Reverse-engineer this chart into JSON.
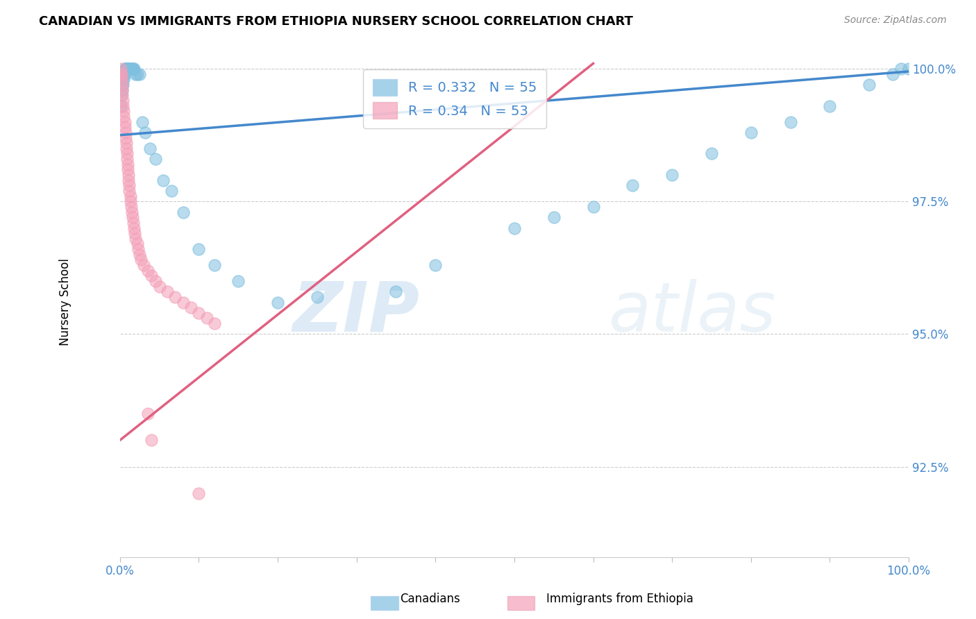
{
  "title": "CANADIAN VS IMMIGRANTS FROM ETHIOPIA NURSERY SCHOOL CORRELATION CHART",
  "source": "Source: ZipAtlas.com",
  "ylabel": "Nursery School",
  "ytick_labels": [
    "100.0%",
    "97.5%",
    "95.0%",
    "92.5%"
  ],
  "ytick_values": [
    1.0,
    0.975,
    0.95,
    0.925
  ],
  "legend_canadian": "Canadians",
  "legend_ethiopia": "Immigrants from Ethiopia",
  "R_canadian": 0.332,
  "N_canadian": 55,
  "R_ethiopia": 0.34,
  "N_ethiopia": 53,
  "blue_color": "#7fbfdf",
  "pink_color": "#f4a0b8",
  "blue_line_color": "#4488cc",
  "pink_line_color": "#e06080",
  "watermark_zip": "ZIP",
  "watermark_atlas": "atlas",
  "canadian_x": [
    0.001,
    0.002,
    0.003,
    0.003,
    0.004,
    0.004,
    0.005,
    0.005,
    0.006,
    0.006,
    0.007,
    0.007,
    0.008,
    0.008,
    0.009,
    0.01,
    0.01,
    0.011,
    0.012,
    0.013,
    0.014,
    0.015,
    0.016,
    0.017,
    0.018,
    0.02,
    0.022,
    0.025,
    0.028,
    0.032,
    0.038,
    0.045,
    0.055,
    0.065,
    0.08,
    0.1,
    0.12,
    0.15,
    0.2,
    0.25,
    0.35,
    0.4,
    0.5,
    0.55,
    0.6,
    0.65,
    0.7,
    0.75,
    0.8,
    0.85,
    0.9,
    0.95,
    0.98,
    0.99,
    1.0
  ],
  "canadian_y": [
    0.993,
    0.995,
    0.996,
    0.997,
    0.997,
    0.998,
    0.998,
    0.999,
    0.999,
    1.0,
    1.0,
    1.0,
    1.0,
    1.0,
    1.0,
    1.0,
    1.0,
    1.0,
    1.0,
    1.0,
    1.0,
    1.0,
    1.0,
    1.0,
    1.0,
    0.999,
    0.999,
    0.999,
    0.99,
    0.988,
    0.985,
    0.983,
    0.979,
    0.977,
    0.973,
    0.966,
    0.963,
    0.96,
    0.956,
    0.957,
    0.958,
    0.963,
    0.97,
    0.972,
    0.974,
    0.978,
    0.98,
    0.984,
    0.988,
    0.99,
    0.993,
    0.997,
    0.999,
    1.0,
    1.0
  ],
  "ethiopia_x": [
    0.001,
    0.001,
    0.002,
    0.002,
    0.003,
    0.003,
    0.003,
    0.004,
    0.004,
    0.005,
    0.005,
    0.006,
    0.006,
    0.007,
    0.007,
    0.008,
    0.008,
    0.009,
    0.009,
    0.01,
    0.01,
    0.011,
    0.011,
    0.012,
    0.012,
    0.013,
    0.013,
    0.014,
    0.015,
    0.016,
    0.017,
    0.018,
    0.019,
    0.02,
    0.022,
    0.023,
    0.025,
    0.027,
    0.03,
    0.035,
    0.04,
    0.045,
    0.05,
    0.06,
    0.07,
    0.08,
    0.09,
    0.1,
    0.11,
    0.12,
    0.035,
    0.04,
    0.1
  ],
  "ethiopia_y": [
    1.0,
    0.999,
    0.999,
    0.998,
    0.997,
    0.996,
    0.995,
    0.994,
    0.993,
    0.992,
    0.991,
    0.99,
    0.989,
    0.988,
    0.987,
    0.986,
    0.985,
    0.984,
    0.983,
    0.982,
    0.981,
    0.98,
    0.979,
    0.978,
    0.977,
    0.976,
    0.975,
    0.974,
    0.973,
    0.972,
    0.971,
    0.97,
    0.969,
    0.968,
    0.967,
    0.966,
    0.965,
    0.964,
    0.963,
    0.962,
    0.961,
    0.96,
    0.959,
    0.958,
    0.957,
    0.956,
    0.955,
    0.954,
    0.953,
    0.952,
    0.935,
    0.93,
    0.92
  ],
  "blue_line_x0": 0.0,
  "blue_line_y0": 0.9875,
  "blue_line_x1": 1.0,
  "blue_line_y1": 0.9995,
  "pink_line_x0": 0.0,
  "pink_line_y0": 0.93,
  "pink_line_x1": 0.6,
  "pink_line_y1": 1.001,
  "xmin": 0.0,
  "xmax": 1.0,
  "ymin": 0.908,
  "ymax": 1.004
}
